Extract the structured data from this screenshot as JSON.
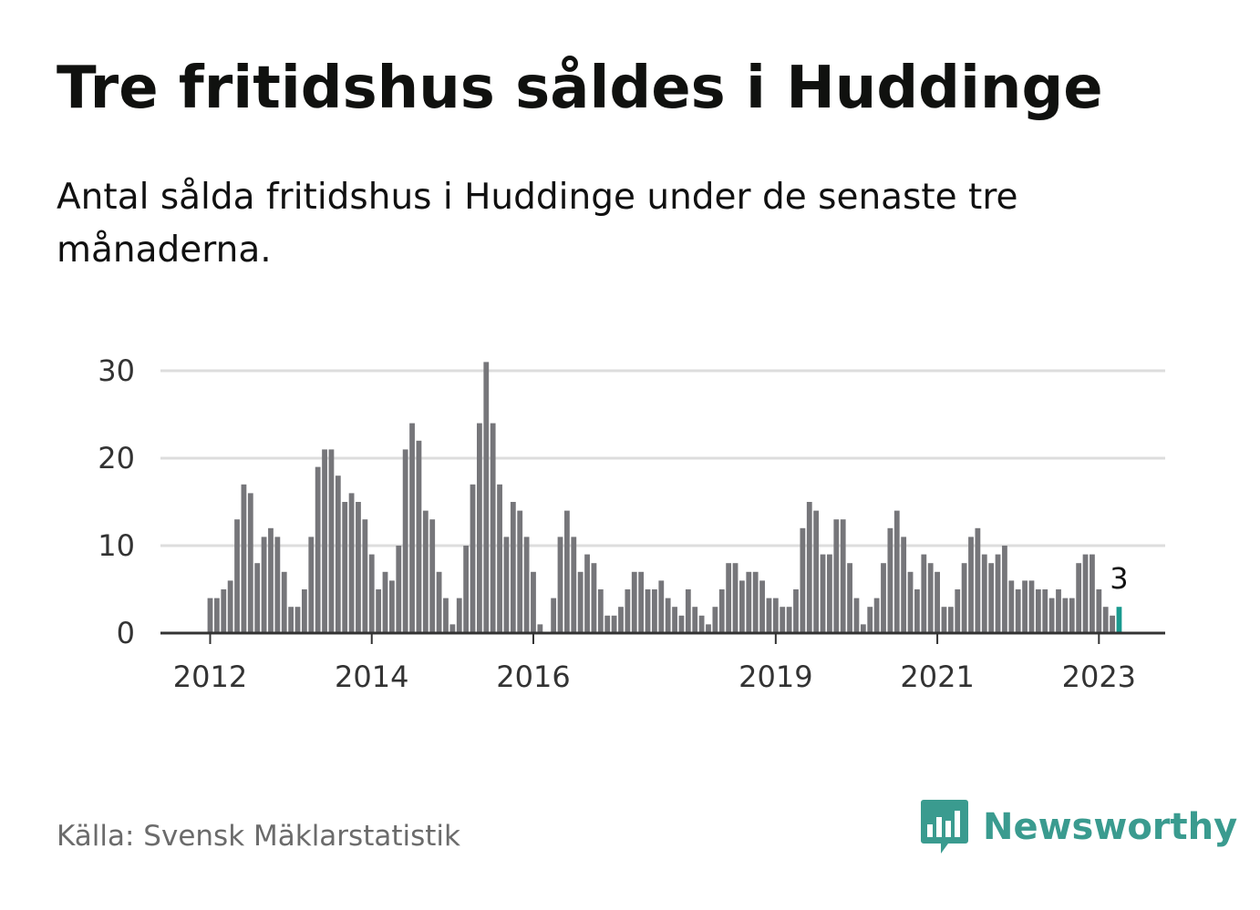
{
  "title": "Tre fritidshus såldes i Huddinge",
  "subtitle": "Antal sålda fritidshus i Huddinge under de senaste tre månaderna.",
  "source": "Källa: Svensk Mäklarstatistik",
  "logo": {
    "text": "Newsworthy",
    "icon": "bar-chart-speech-bubble-icon"
  },
  "colors": {
    "bars": "#76767a",
    "highlight": "#1a9a8f",
    "grid": "#dddddd",
    "axis": "#333333",
    "brand": "#3a9b8f"
  },
  "chart_data": {
    "type": "bar",
    "title": "Tre fritidshus såldes i Huddinge",
    "xlabel": "",
    "ylabel": "",
    "ylim": [
      0,
      30
    ],
    "grid": true,
    "y_ticks": [
      0,
      10,
      20,
      30
    ],
    "x_ticks": [
      {
        "label": "2012",
        "date": "2012-01"
      },
      {
        "label": "2014",
        "date": "2014-01"
      },
      {
        "label": "2016",
        "date": "2016-01"
      },
      {
        "label": "2019",
        "date": "2019-01"
      },
      {
        "label": "2021",
        "date": "2021-01"
      },
      {
        "label": "2023",
        "date": "2023-01"
      }
    ],
    "start_month": "2012-01",
    "values": [
      4,
      4,
      5,
      6,
      13,
      17,
      16,
      8,
      11,
      12,
      11,
      7,
      3,
      3,
      5,
      11,
      19,
      21,
      21,
      18,
      15,
      16,
      15,
      13,
      9,
      5,
      7,
      6,
      10,
      21,
      24,
      22,
      14,
      13,
      7,
      4,
      1,
      4,
      10,
      17,
      24,
      31,
      24,
      17,
      11,
      15,
      14,
      11,
      7,
      1,
      0,
      4,
      11,
      14,
      11,
      7,
      9,
      8,
      5,
      2,
      2,
      3,
      5,
      7,
      7,
      5,
      5,
      6,
      4,
      3,
      2,
      5,
      3,
      2,
      1,
      3,
      5,
      8,
      8,
      6,
      7,
      7,
      6,
      4,
      4,
      3,
      3,
      5,
      12,
      15,
      14,
      9,
      9,
      13,
      13,
      8,
      4,
      1,
      3,
      4,
      8,
      12,
      14,
      11,
      7,
      5,
      9,
      8,
      7,
      3,
      3,
      5,
      8,
      11,
      12,
      9,
      8,
      9,
      10,
      6,
      5,
      6,
      6,
      5,
      5,
      4,
      5,
      4,
      4,
      8,
      9,
      9,
      5,
      3,
      2,
      3
    ],
    "highlight_last": true,
    "callout": "3"
  }
}
